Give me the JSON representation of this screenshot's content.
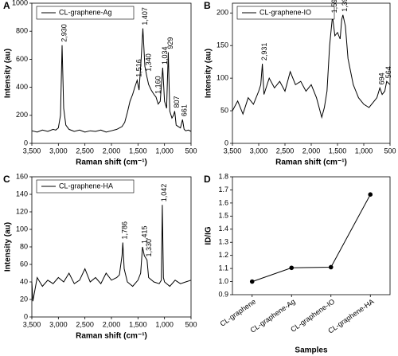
{
  "chart_data": [
    {
      "type": "line",
      "label": "A",
      "xlabel": "Raman shift (cm⁻¹)",
      "ylabel": "Intensity (au)",
      "xlim": [
        3500,
        500
      ],
      "ylim": [
        0,
        1000
      ],
      "xticks": [
        {
          "value": 3500,
          "label": "3,500"
        },
        {
          "value": 3000,
          "label": "3,000"
        },
        {
          "value": 2500,
          "label": "2,500"
        },
        {
          "value": 2000,
          "label": "2,000"
        },
        {
          "value": 1500,
          "label": "1,500"
        },
        {
          "value": 1000,
          "label": "1,000"
        },
        500
      ],
      "yticks": [
        0,
        200,
        400,
        600,
        800,
        1000
      ],
      "x": [
        3500,
        3400,
        3300,
        3200,
        3100,
        3050,
        3000,
        2960,
        2930,
        2900,
        2860,
        2800,
        2700,
        2600,
        2500,
        2400,
        2300,
        2200,
        2100,
        2000,
        1900,
        1800,
        1750,
        1700,
        1650,
        1600,
        1560,
        1516,
        1480,
        1440,
        1407,
        1370,
        1340,
        1300,
        1250,
        1200,
        1160,
        1120,
        1080,
        1034,
        1000,
        960,
        929,
        900,
        860,
        830,
        807,
        780,
        740,
        700,
        661,
        630,
        600,
        550,
        500
      ],
      "series": [
        {
          "name": "CL-graphene-Ag",
          "color": "#000000",
          "values": [
            90,
            80,
            95,
            85,
            100,
            95,
            110,
            200,
            700,
            250,
            130,
            100,
            85,
            95,
            80,
            90,
            85,
            95,
            80,
            90,
            100,
            120,
            150,
            220,
            300,
            350,
            400,
            450,
            380,
            600,
            820,
            550,
            490,
            420,
            380,
            350,
            330,
            280,
            300,
            540,
            300,
            250,
            650,
            230,
            180,
            200,
            230,
            130,
            120,
            110,
            170,
            100,
            90,
            95,
            85
          ]
        }
      ],
      "annotations": [
        {
          "label": "2,930",
          "x": 2930
        },
        {
          "label": "1,516",
          "x": 1516
        },
        {
          "label": "1,407",
          "x": 1407
        },
        {
          "label": "1,340",
          "x": 1340
        },
        {
          "label": "1,160",
          "x": 1160
        },
        {
          "label": "1,034",
          "x": 1034
        },
        {
          "label": "929",
          "x": 929
        },
        {
          "label": "807",
          "x": 807
        },
        {
          "label": "661",
          "x": 661
        }
      ]
    },
    {
      "type": "line",
      "label": "B",
      "xlabel": "Raman shift (cm⁻¹)",
      "ylabel": "Intensity (au)",
      "xlim": [
        3500,
        500
      ],
      "ylim": [
        0,
        215
      ],
      "xticks": [
        {
          "value": 3500,
          "label": "3,500"
        },
        {
          "value": 3000,
          "label": "3,000"
        },
        {
          "value": 2500,
          "label": "2,500"
        },
        {
          "value": 2000,
          "label": "2,000"
        },
        {
          "value": 1500,
          "label": "1,500"
        },
        {
          "value": 1000,
          "label": "1,000"
        },
        500
      ],
      "yticks": [
        0,
        50,
        100,
        150,
        200
      ],
      "x": [
        3500,
        3400,
        3300,
        3200,
        3100,
        3000,
        2960,
        2931,
        2900,
        2800,
        2700,
        2600,
        2500,
        2400,
        2300,
        2200,
        2100,
        2000,
        1900,
        1800,
        1750,
        1700,
        1650,
        1620,
        1596,
        1550,
        1500,
        1450,
        1420,
        1397,
        1350,
        1300,
        1250,
        1200,
        1150,
        1100,
        1000,
        900,
        800,
        750,
        694,
        650,
        600,
        564,
        500
      ],
      "series": [
        {
          "name": "CL-graphene-IO",
          "color": "#000000",
          "values": [
            50,
            65,
            45,
            70,
            60,
            80,
            90,
            122,
            75,
            100,
            85,
            95,
            80,
            110,
            90,
            95,
            80,
            90,
            70,
            40,
            55,
            80,
            150,
            175,
            195,
            165,
            170,
            160,
            190,
            197,
            180,
            130,
            110,
            90,
            80,
            70,
            60,
            55,
            65,
            70,
            85,
            75,
            80,
            95,
            90
          ]
        }
      ],
      "annotations": [
        {
          "label": "2,931",
          "x": 2931
        },
        {
          "label": "1,596",
          "x": 1596
        },
        {
          "label": "1,397",
          "x": 1397
        },
        {
          "label": "694",
          "x": 694
        },
        {
          "label": "564",
          "x": 564
        }
      ]
    },
    {
      "type": "line",
      "label": "C",
      "xlabel": "Raman shift (cm⁻¹)",
      "ylabel": "Intensity (au)",
      "xlim": [
        3500,
        500
      ],
      "ylim": [
        0,
        160
      ],
      "xticks": [
        {
          "value": 3500,
          "label": "3,500"
        },
        {
          "value": 3000,
          "label": "3,000"
        },
        {
          "value": 2500,
          "label": "2,500"
        },
        {
          "value": 2000,
          "label": "2,000"
        },
        {
          "value": 1500,
          "label": "1,500"
        },
        {
          "value": 1000,
          "label": "1,000"
        },
        500
      ],
      "yticks": [
        0,
        20,
        40,
        60,
        80,
        100,
        120,
        140,
        160
      ],
      "x": [
        3500,
        3480,
        3400,
        3300,
        3200,
        3100,
        3000,
        2900,
        2800,
        2700,
        2600,
        2500,
        2400,
        2300,
        2200,
        2100,
        2000,
        1900,
        1850,
        1800,
        1786,
        1760,
        1700,
        1600,
        1500,
        1450,
        1415,
        1380,
        1330,
        1300,
        1200,
        1100,
        1060,
        1042,
        1020,
        1000,
        900,
        800,
        700,
        600,
        500
      ],
      "series": [
        {
          "name": "CL-graphene-HA",
          "color": "#000000",
          "values": [
            40,
            18,
            45,
            35,
            42,
            38,
            45,
            40,
            50,
            38,
            42,
            55,
            40,
            45,
            38,
            50,
            42,
            45,
            48,
            70,
            85,
            55,
            40,
            35,
            42,
            50,
            80,
            70,
            65,
            45,
            40,
            38,
            42,
            128,
            45,
            40,
            35,
            42,
            38,
            40,
            42
          ]
        }
      ],
      "annotations": [
        {
          "label": "1,786",
          "x": 1786
        },
        {
          "label": "1,415",
          "x": 1415
        },
        {
          "label": "1,330",
          "x": 1330
        },
        {
          "label": "1,042",
          "x": 1042
        }
      ]
    },
    {
      "type": "dotline",
      "label": "D",
      "xlabel": "Samples",
      "ylabel": "ID/IG",
      "categories": [
        "CL-graphene",
        "CL-graphene-Ag",
        "CL-graphene-IO",
        "CL-graphene-HA"
      ],
      "ylim": [
        0.9,
        1.8
      ],
      "yticks": [
        0.9,
        {
          "value": 1,
          "label": "1.0"
        },
        1.1,
        1.2,
        1.3,
        1.4,
        1.5,
        1.6,
        1.7,
        1.8
      ],
      "color": "#000000",
      "values": [
        1.0,
        1.105,
        1.11,
        1.665
      ]
    }
  ]
}
